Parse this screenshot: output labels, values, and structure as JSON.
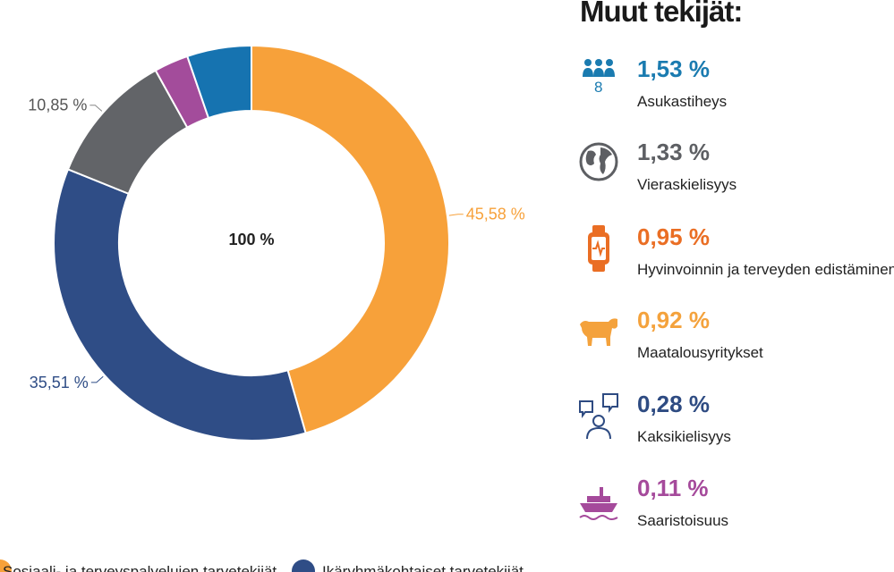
{
  "chart_data": {
    "type": "pie",
    "center_label": "100 %",
    "series": [
      {
        "name": "Sosiaali- ja terveyspalvelujen tarvetekijät",
        "value": 45.58,
        "label": "45,58 %",
        "color": "#f7a13a"
      },
      {
        "name": "Ikäryhmäkohtaiset tarvetekijät",
        "value": 35.51,
        "label": "35,51 %",
        "color": "#2f4d86"
      },
      {
        "value": 10.85,
        "label": "10,85 %",
        "color": "#626468"
      },
      {
        "value": 2.8,
        "label": "",
        "color": "#a34c9b"
      },
      {
        "value": 5.26,
        "label": "",
        "color": "#1673b0"
      }
    ]
  },
  "other_factors": {
    "title": "Muut tekijät:",
    "items": [
      {
        "value": "1,53 %",
        "label": "Asukastiheys",
        "icon": "people-density-icon",
        "icon_text": "8",
        "color": "#1a7bb0"
      },
      {
        "value": "1,33 %",
        "label": "Vieraskielisyys",
        "icon": "globe-icon",
        "color": "#5d5f63"
      },
      {
        "value": "0,95 %",
        "label": "Hyvinvoinnin ja terveyden edistäminen",
        "icon": "smartwatch-icon",
        "color": "#ea6e24"
      },
      {
        "value": "0,92 %",
        "label": "Maatalousyritykset",
        "icon": "cow-icon",
        "color": "#f4a23c"
      },
      {
        "value": "0,28 %",
        "label": "Kaksikielisyys",
        "icon": "speech-bubbles-person-icon",
        "color": "#2e4b82"
      },
      {
        "value": "0,11 %",
        "label": "Saaristoisuus",
        "icon": "ferry-icon",
        "color": "#a54a9b"
      }
    ]
  }
}
